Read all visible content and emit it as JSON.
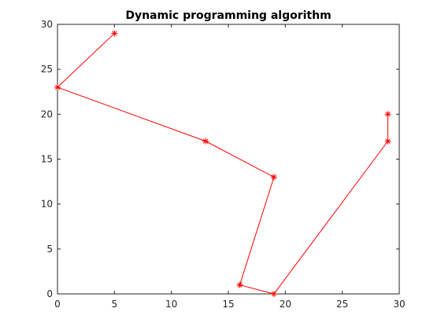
{
  "chart_data": {
    "type": "line",
    "title": "Dynamic programming algorithm",
    "xlabel": "",
    "ylabel": "",
    "xlim": [
      0,
      30
    ],
    "ylim": [
      0,
      30
    ],
    "xticks": [
      0,
      5,
      10,
      15,
      20,
      25,
      30
    ],
    "yticks": [
      0,
      5,
      10,
      15,
      20,
      25,
      30
    ],
    "grid": false,
    "legend": "none",
    "series": [
      {
        "color": "#ff0000",
        "marker": "asterisk",
        "points": [
          {
            "x": 5,
            "y": 29
          },
          {
            "x": 0,
            "y": 23
          },
          {
            "x": 13,
            "y": 17
          },
          {
            "x": 19,
            "y": 13
          },
          {
            "x": 16,
            "y": 1
          },
          {
            "x": 19,
            "y": 0
          },
          {
            "x": 29,
            "y": 17
          },
          {
            "x": 29,
            "y": 20
          }
        ]
      }
    ]
  }
}
